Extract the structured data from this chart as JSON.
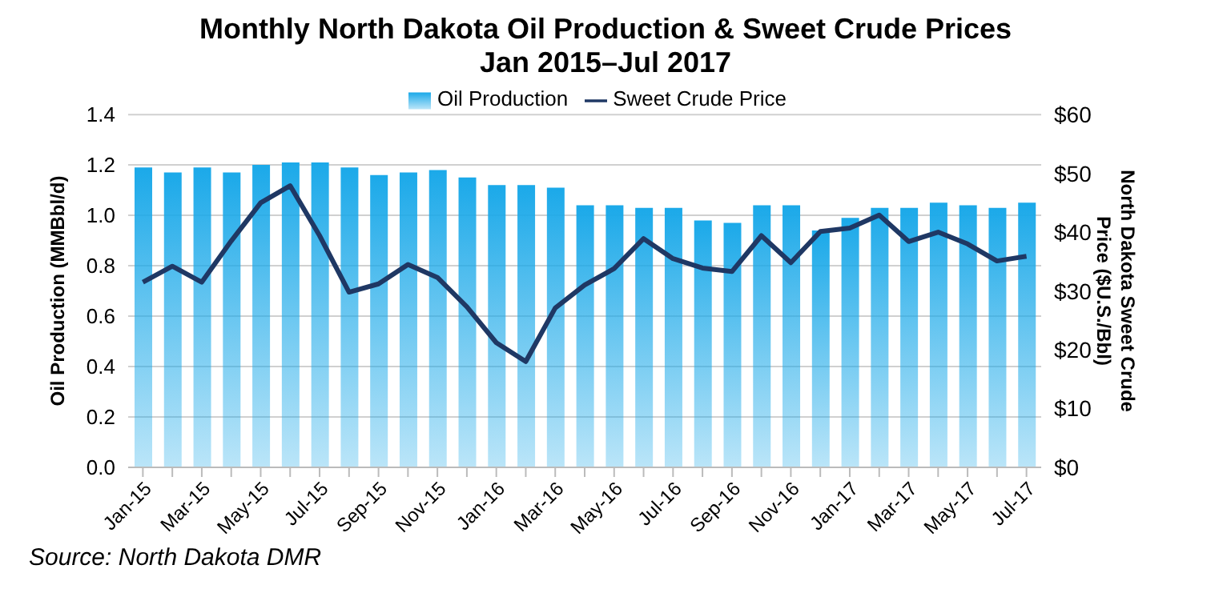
{
  "chart_data": {
    "type": "bar",
    "title": "Monthly North Dakota Oil Production & Sweet Crude Prices\nJan 2015–Jul 2017",
    "ylabel": "Oil Production (MMBbl/d)",
    "y2label": "North Dakota Sweet Crude Price ($U.S./Bbl)",
    "annotations": [
      "Source: North Dakota DMR"
    ],
    "categories": [
      "Jan-15",
      null,
      "Mar-15",
      null,
      "May-15",
      null,
      "Jul-15",
      null,
      "Sep-15",
      null,
      "Nov-15",
      null,
      "Jan-16",
      null,
      "Mar-16",
      null,
      "May-16",
      null,
      "Jul-16",
      null,
      "Sep-16",
      null,
      "Nov-16",
      null,
      "Jan-17",
      null,
      "Mar-17",
      null,
      "May-17",
      null,
      "Jul-17"
    ],
    "series": [
      {
        "name": "Oil Production",
        "color": "#1ba9e9",
        "values": [
          1.19,
          1.17,
          1.19,
          1.17,
          1.2,
          1.21,
          1.21,
          1.19,
          1.16,
          1.17,
          1.18,
          1.15,
          1.12,
          1.12,
          1.11,
          1.04,
          1.04,
          1.03,
          1.03,
          0.98,
          0.97,
          1.04,
          1.04,
          0.94,
          0.99,
          1.03,
          1.03,
          1.05,
          1.04,
          1.03,
          1.05
        ]
      },
      {
        "name": "Sweet Crude Price",
        "type": "line",
        "axis": "y2",
        "color": "#1f3864",
        "values": [
          31.5,
          34.2,
          31.5,
          38.5,
          45,
          47.9,
          39.4,
          29.8,
          31.2,
          34.5,
          32.3,
          27.3,
          21.2,
          18,
          27.1,
          31,
          33.8,
          38.9,
          35.5,
          33.9,
          33.3,
          39.4,
          34.8,
          40.1,
          40.7,
          42.9,
          38.4,
          40,
          38,
          35.1,
          35.9
        ]
      }
    ],
    "ylim": [
      0,
      1.4
    ],
    "yticks": [
      {
        "value": 0,
        "label": "0.0"
      },
      0.2,
      0.4,
      0.6,
      0.8,
      {
        "value": 1,
        "label": "1.0"
      },
      1.2,
      1.4
    ],
    "y2lim": [
      0,
      60
    ],
    "y2ticks": [
      {
        "value": 0,
        "label": "$0"
      },
      {
        "value": 10,
        "label": "$10"
      },
      {
        "value": 20,
        "label": "$20"
      },
      {
        "value": 30,
        "label": "$30"
      },
      {
        "value": 40,
        "label": "$40"
      },
      {
        "value": 50,
        "label": "$50"
      },
      {
        "value": 60,
        "label": "$60"
      }
    ],
    "grid": "y",
    "legend": "top",
    "marker": "none",
    "line_style": "solid"
  }
}
